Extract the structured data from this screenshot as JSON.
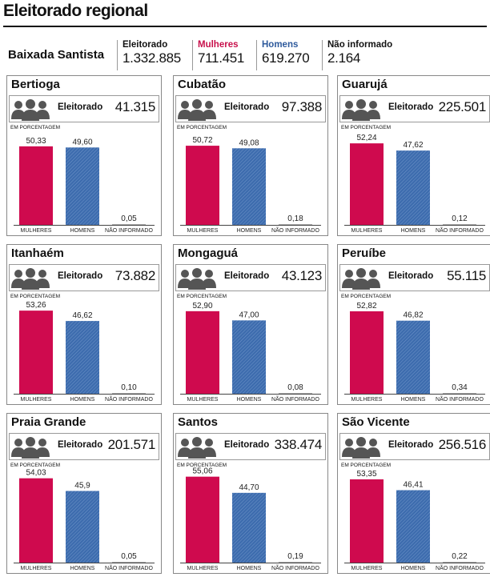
{
  "title": "Eleitorado regional",
  "summary": {
    "region": "Baixada Santista",
    "items": [
      {
        "label": "Eleitorado",
        "value": "1.332.885",
        "color": "#111111"
      },
      {
        "label": "Mulheres",
        "value": "711.451",
        "color": "#c8104b"
      },
      {
        "label": "Homens",
        "value": "619.270",
        "color": "#2e5a9c"
      },
      {
        "label": "Não informado",
        "value": "2.164",
        "color": "#111111"
      }
    ]
  },
  "colors": {
    "mulheres": "#cf0a4e",
    "homens": "#3d6cae"
  },
  "panel_labels": {
    "eleitorado": "Eleitorado",
    "percent_note": "EM PORCENTAGEM"
  },
  "chart_data": [
    {
      "type": "bar",
      "title": "Bertioga",
      "eleitorado": "41.315",
      "categories": [
        "MULHERES",
        "HOMENS",
        "NÃO INFORMADO"
      ],
      "values": [
        50.33,
        49.6,
        0.05
      ],
      "labels": [
        "50,33",
        "49,60",
        "0,05"
      ]
    },
    {
      "type": "bar",
      "title": "Cubatão",
      "eleitorado": "97.388",
      "categories": [
        "MULHERES",
        "HOMENS",
        "NÃO INFORMADO"
      ],
      "values": [
        50.72,
        49.08,
        0.18
      ],
      "labels": [
        "50,72",
        "49,08",
        "0,18"
      ]
    },
    {
      "type": "bar",
      "title": "Guarujá",
      "eleitorado": "225.501",
      "categories": [
        "MULHERES",
        "HOMENS",
        "NÃO INFORMADO"
      ],
      "values": [
        52.24,
        47.62,
        0.12
      ],
      "labels": [
        "52,24",
        "47,62",
        "0,12"
      ]
    },
    {
      "type": "bar",
      "title": "Itanhaém",
      "eleitorado": "73.882",
      "categories": [
        "MULHERES",
        "HOMENS",
        "NÃO INFORMADO"
      ],
      "values": [
        53.26,
        46.62,
        0.1
      ],
      "labels": [
        "53,26",
        "46,62",
        "0,10"
      ]
    },
    {
      "type": "bar",
      "title": "Mongaguá",
      "eleitorado": "43.123",
      "categories": [
        "MULHERES",
        "HOMENS",
        "NÃO INFORMADO"
      ],
      "values": [
        52.9,
        47.0,
        0.08
      ],
      "labels": [
        "52,90",
        "47,00",
        "0,08"
      ]
    },
    {
      "type": "bar",
      "title": "Peruíbe",
      "eleitorado": "55.115",
      "categories": [
        "MULHERES",
        "HOMENS",
        "NÃO INFORMADO"
      ],
      "values": [
        52.82,
        46.82,
        0.34
      ],
      "labels": [
        "52,82",
        "46,82",
        "0,34"
      ]
    },
    {
      "type": "bar",
      "title": "Praia Grande",
      "eleitorado": "201.571",
      "categories": [
        "MULHERES",
        "HOMENS",
        "NÃO INFORMADO"
      ],
      "values": [
        54.03,
        45.9,
        0.05
      ],
      "labels": [
        "54,03",
        "45,9",
        "0,05"
      ]
    },
    {
      "type": "bar",
      "title": "Santos",
      "eleitorado": "338.474",
      "categories": [
        "MULHERES",
        "HOMENS",
        "NÃO INFORMADO"
      ],
      "values": [
        55.06,
        44.7,
        0.19
      ],
      "labels": [
        "55,06",
        "44,70",
        "0,19"
      ]
    },
    {
      "type": "bar",
      "title": "São Vicente",
      "eleitorado": "256.516",
      "categories": [
        "MULHERES",
        "HOMENS",
        "NÃO INFORMADO"
      ],
      "values": [
        53.35,
        46.41,
        0.22
      ],
      "labels": [
        "53,35",
        "46,41",
        "0,22"
      ]
    }
  ]
}
